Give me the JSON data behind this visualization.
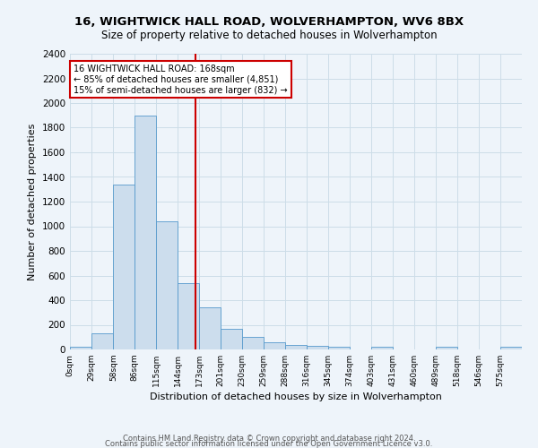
{
  "title": "16, WIGHTWICK HALL ROAD, WOLVERHAMPTON, WV6 8BX",
  "subtitle": "Size of property relative to detached houses in Wolverhampton",
  "xlabel": "Distribution of detached houses by size in Wolverhampton",
  "ylabel": "Number of detached properties",
  "bar_values": [
    20,
    130,
    1340,
    1900,
    1040,
    540,
    340,
    165,
    105,
    55,
    35,
    30,
    20,
    0,
    20,
    0,
    0,
    20,
    0,
    0,
    20
  ],
  "bin_labels": [
    "0sqm",
    "29sqm",
    "58sqm",
    "86sqm",
    "115sqm",
    "144sqm",
    "173sqm",
    "201sqm",
    "230sqm",
    "259sqm",
    "288sqm",
    "316sqm",
    "345sqm",
    "374sqm",
    "403sqm",
    "431sqm",
    "460sqm",
    "489sqm",
    "518sqm",
    "546sqm",
    "575sqm"
  ],
  "bin_edges": [
    0,
    29,
    58,
    86,
    115,
    144,
    173,
    201,
    230,
    259,
    288,
    316,
    345,
    374,
    403,
    431,
    460,
    489,
    518,
    546,
    575,
    604
  ],
  "bar_color": "#ccdded",
  "bar_edge_color": "#5599cc",
  "red_line_x": 168,
  "annotation_text": "16 WIGHTWICK HALL ROAD: 168sqm\n← 85% of detached houses are smaller (4,851)\n15% of semi-detached houses are larger (832) →",
  "annotation_box_color": "#ffffff",
  "annotation_box_edge": "#cc0000",
  "ylim": [
    0,
    2400
  ],
  "yticks": [
    0,
    200,
    400,
    600,
    800,
    1000,
    1200,
    1400,
    1600,
    1800,
    2000,
    2200,
    2400
  ],
  "grid_color": "#ccdde8",
  "background_color": "#eef4fa",
  "plot_bg_color": "#eef4fa",
  "footer_line1": "Contains HM Land Registry data © Crown copyright and database right 2024.",
  "footer_line2": "Contains public sector information licensed under the Open Government Licence v3.0."
}
